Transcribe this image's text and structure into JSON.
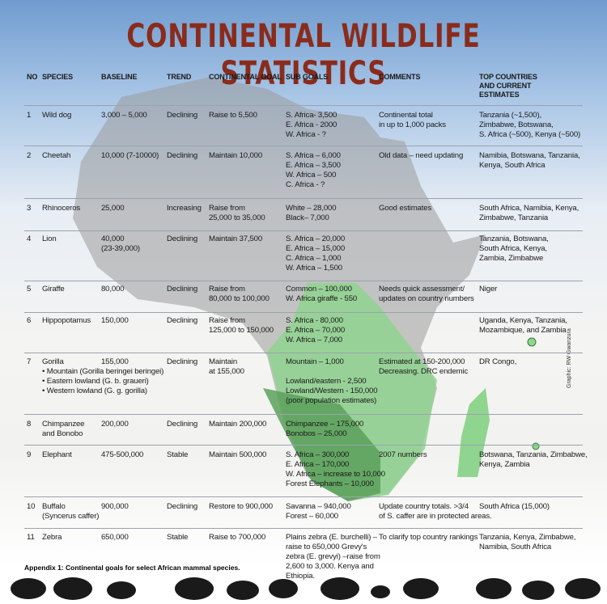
{
  "title": "CONTINENTAL WILDLIFE STATISTICS",
  "table": {
    "headers": [
      "NO",
      "SPECIES",
      "BASELINE",
      "TREND",
      "CONTINENTAL GOAL",
      "SUB GOALS",
      "COMMENTS",
      [
        "TOP COUNTRIES",
        "AND CURRENT",
        "ESTIMATES"
      ]
    ],
    "rows": [
      [
        "1",
        "Wild dog",
        "3,000 – 5,000",
        "Declining",
        "Raise to 5,500",
        [
          "S. Africa- 3,500",
          "E. Africa - 2000",
          "W. Africa - ?"
        ],
        [
          "Continental total",
          "in up to 1,000 packs"
        ],
        [
          "Tanzania (~1,500),",
          "Zimbabwe, Botswana,",
          "S. Africa (~500), Kenya (~500)"
        ]
      ],
      [
        "2",
        "Cheetah",
        "10,000 (7-10000)",
        "Declining",
        "Maintain 10,000",
        [
          "S. Africa – 6,000",
          "E. Africa – 3,500",
          "W. Africa – 500",
          "C. Africa - ?"
        ],
        [
          "Old data – need updating"
        ],
        [
          "Namibia, Botswana, Tanzania,",
          "Kenya, South Africa"
        ]
      ],
      [
        "3",
        "Rhinoceros",
        "25,000",
        "Increasing",
        [
          "Raise from",
          "25,000 to 35,000"
        ],
        [
          "White – 28,000",
          "Black– 7,000"
        ],
        [
          "Good estimates"
        ],
        [
          "South Africa, Namibia, Kenya,",
          "Zimbabwe, Tanzania"
        ]
      ],
      [
        "4",
        "Lion",
        [
          "40,000",
          "(23-39,000)"
        ],
        "Declining",
        "Maintain 37,500",
        [
          "S. Africa – 20,000",
          "E. Africa – 15,000",
          "C. Africa – 1,000",
          "W. Africa – 1,500"
        ],
        [],
        [
          "Tanzania, Botswana,",
          "South Africa, Kenya,",
          "Zambia, Zimbabwe"
        ]
      ],
      [
        "5",
        "Giraffe",
        "80,000",
        "Declining",
        [
          "Raise from",
          "80,000 to 100,000"
        ],
        [
          "Common – 100,000",
          "W. Africa giraffe - 550"
        ],
        [
          "Needs quick assessment/",
          "updates on country numbers"
        ],
        [
          "Niger"
        ]
      ],
      [
        "6",
        "Hippopotamus",
        "150,000",
        "Declining",
        [
          "Raise from",
          "125,000 to 150,000"
        ],
        [
          "S. Africa - 80,000",
          "E. Africa – 70,000",
          "W. Africa – 7,000"
        ],
        [],
        [
          "Uganda, Kenya, Tanzania,",
          "Mozambique, and Zambia"
        ]
      ],
      [
        "7",
        [
          "Gorilla",
          "• Mountain (Gorilla beringei beringei)",
          "• Eastern lowland (G. b. graueri)",
          "• Western lowland (G. g. gorilla)"
        ],
        "155,000",
        "Declining",
        [
          "Maintain",
          "at 155,000"
        ],
        [
          "Mountain – 1,000",
          "Lowland/eastern - 2,500",
          "Lowland/Western - 150,000",
          "(poor population estimates)"
        ],
        [
          "Estimated at 150-200,000",
          "Decreasing. DRC endemic"
        ],
        [
          "DR Congo,"
        ]
      ],
      [
        "8",
        [
          "Chimpanzee",
          "and Bonobo"
        ],
        "200,000",
        "Declining",
        "Maintain  200,000",
        [
          "Chimpanzee – 175,000",
          "Bonobos – 25,000"
        ],
        [],
        []
      ],
      [
        "9",
        "Elephant",
        "475-500,000",
        "Stable",
        "Maintain 500,000",
        [
          "S. Africa – 300,000",
          "E. Africa – 170,000",
          "W. Africa – increase to 10,000",
          "Forest Elephants – 10,000"
        ],
        [
          "2007 numbers"
        ],
        [
          "Botswana, Tanzania, Zimbabwe,",
          "Kenya, Zambia"
        ]
      ],
      [
        "10",
        [
          "Buffalo",
          "(Syncerus caffer)"
        ],
        "900,000",
        "Declining",
        "Restore to 900,000",
        [
          "Savanna – 940,000",
          "Forest – 60,000"
        ],
        [
          "Update country totals. >3/4",
          "of S. caffer are in protected areas."
        ],
        [
          "South Africa (15,000)"
        ]
      ],
      [
        "11",
        "Zebra",
        "650,000",
        "Stable",
        "Raise to 700,000",
        [
          "Plains zebra (E. burchelli) –",
          "raise to 650,000 Grevy's",
          "zebra (E. grevyi) –raise from",
          "2,600 to 3,000. Kenya and",
          "Ethiopia."
        ],
        [
          "To clarify top country rankings"
        ],
        [
          "Tanzania, Kenya, Zimbabwe,",
          "Namibia, South Africa"
        ]
      ]
    ]
  },
  "caption": "Appendix 1: Continental goals for select African mammal species.",
  "credit": "Graphic: RW Gwanzura"
}
